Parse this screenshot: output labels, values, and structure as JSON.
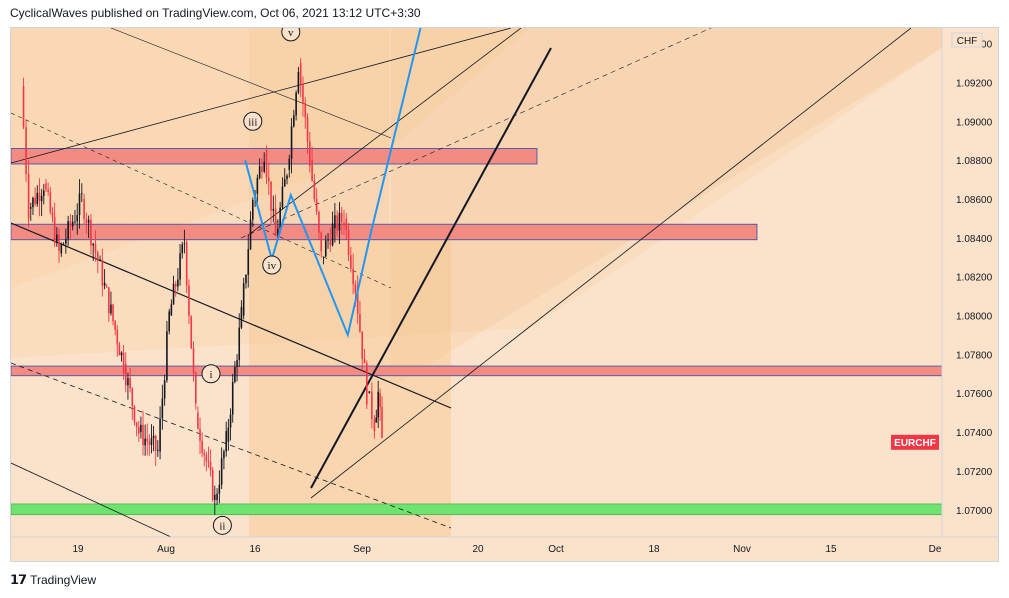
{
  "header": {
    "text": "CyclicalWaves published on TradingView.com, Oct 06, 2021 13:12 UTC+3:30"
  },
  "footer": {
    "brand": "TradingView",
    "logo_icon": "tradingview-logo-icon"
  },
  "chart_data": {
    "type": "candlestick",
    "symbol": "EURCHF",
    "currency_label": "CHF",
    "symbol_badge_color": "#f23645",
    "x_tick_labels": [
      "19",
      "Aug",
      "16",
      "Sep",
      "20",
      "Oct",
      "18",
      "Nov",
      "15",
      "De"
    ],
    "y_tick_labels": [
      "1.09400",
      "1.09200",
      "1.09000",
      "1.08800",
      "1.08600",
      "1.08400",
      "1.08200",
      "1.08000",
      "1.07800",
      "1.07600",
      "1.07400",
      "1.07200",
      "1.07000"
    ],
    "ylim": [
      1.0686,
      1.0948
    ],
    "wave_labels": [
      {
        "label": "v",
        "date": "2021-09-13",
        "price": 1.0946
      },
      {
        "label": "iii",
        "date": "2021-09-03",
        "price": 1.09
      },
      {
        "label": "iv",
        "date": "2021-09-08",
        "price": 1.0826
      },
      {
        "label": "i",
        "date": "2021-08-23",
        "price": 1.077
      },
      {
        "label": "ii",
        "date": "2021-08-26",
        "price": 1.0692
      }
    ],
    "zones": [
      {
        "top": 1.0886,
        "bottom": 1.0878,
        "color": "#f28b82"
      },
      {
        "top": 1.0847,
        "bottom": 1.0839,
        "color": "#f28b82"
      },
      {
        "top": 1.0774,
        "bottom": 1.0769,
        "color": "#f28b82"
      },
      {
        "top": 1.0703,
        "bottom": 1.06975,
        "color": "#6ee36e"
      }
    ],
    "projection_path": [
      {
        "date": "2021-09-01",
        "price": 1.088
      },
      {
        "date": "2021-09-08",
        "price": 1.0829
      },
      {
        "date": "2021-09-13",
        "price": 1.0862
      },
      {
        "date": "2021-09-28",
        "price": 1.079
      },
      {
        "date": "2021-10-04",
        "price": 1.0842
      },
      {
        "date": "2021-10-18",
        "price": 1.0955
      }
    ],
    "last_price": 1.0735,
    "colors": {
      "background": "#fbe3cb",
      "down": "#f23645",
      "up": "#131722",
      "projection": "#2196f3"
    }
  }
}
